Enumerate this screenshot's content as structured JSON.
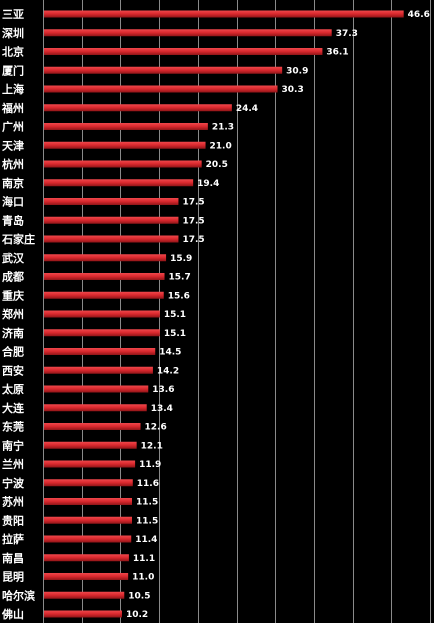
{
  "chart_data": {
    "type": "bar",
    "orientation": "horizontal",
    "categories": [
      "三亚",
      "深圳",
      "北京",
      "厦门",
      "上海",
      "福州",
      "广州",
      "天津",
      "杭州",
      "南京",
      "海口",
      "青岛",
      "石家庄",
      "武汉",
      "成都",
      "重庆",
      "郑州",
      "济南",
      "合肥",
      "西安",
      "太原",
      "大连",
      "东莞",
      "南宁",
      "兰州",
      "宁波",
      "苏州",
      "贵阳",
      "拉萨",
      "南昌",
      "昆明",
      "哈尔滨",
      "佛山"
    ],
    "values": [
      46.6,
      37.3,
      36.1,
      30.9,
      30.3,
      24.4,
      21.3,
      21.0,
      20.5,
      19.4,
      17.5,
      17.5,
      17.5,
      15.9,
      15.7,
      15.6,
      15.1,
      15.1,
      14.5,
      14.2,
      13.6,
      13.4,
      12.6,
      12.1,
      11.9,
      11.6,
      11.5,
      11.5,
      11.4,
      11.1,
      11.0,
      10.5,
      10.2
    ],
    "value_labels": [
      "46.6",
      "37.3",
      "36.1",
      "30.9",
      "30.3",
      "24.4",
      "21.3",
      "21.0",
      "20.5",
      "19.4",
      "17.5",
      "17.5",
      "17.5",
      "15.9",
      "15.7",
      "15.6",
      "15.1",
      "15.1",
      "14.5",
      "14.2",
      "13.6",
      "13.4",
      "12.6",
      "12.1",
      "11.9",
      "11.6",
      "11.5",
      "11.5",
      "11.4",
      "11.1",
      "11.0",
      "10.5",
      "10.2"
    ],
    "xlim": [
      0,
      50
    ],
    "grid": true,
    "bar_color": "#d8282d",
    "background_color": "#000000",
    "grid_color": "#8a8a8a",
    "text_color": "#ffffff"
  }
}
